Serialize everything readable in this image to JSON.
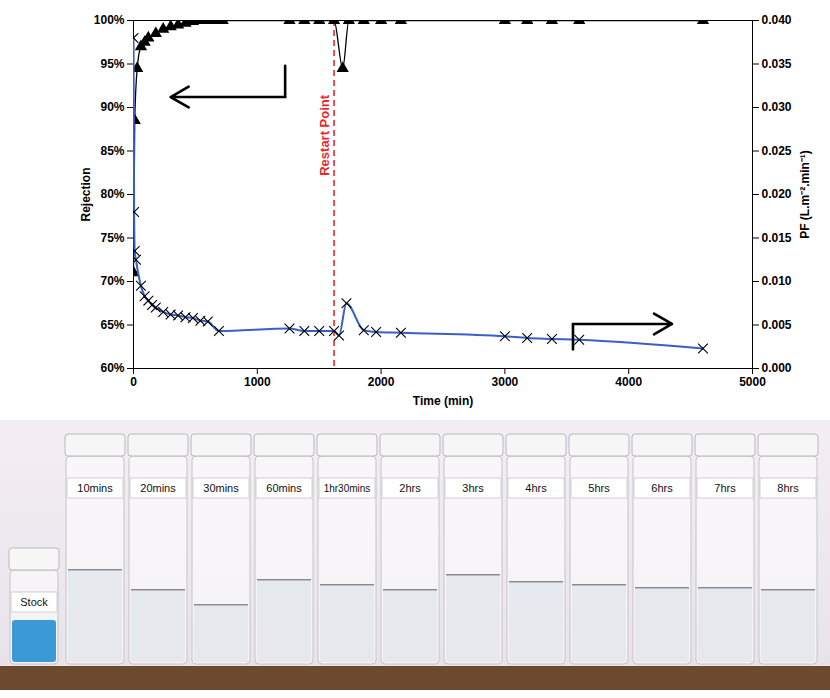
{
  "chart_data": {
    "type": "line",
    "xlabel": "Time (min)",
    "ylabel": "Rejection",
    "y2label": "PF (L.m⁻².min⁻¹)",
    "xlim": [
      0,
      5000
    ],
    "xticks": [
      0,
      1000,
      2000,
      3000,
      4000,
      5000
    ],
    "ylim": [
      60,
      100
    ],
    "yticks": [
      {
        "value": 60,
        "label": "60%"
      },
      {
        "value": 65,
        "label": "65%"
      },
      {
        "value": 70,
        "label": "70%"
      },
      {
        "value": 75,
        "label": "75%"
      },
      {
        "value": 80,
        "label": "80%"
      },
      {
        "value": 85,
        "label": "85%"
      },
      {
        "value": 90,
        "label": "90%"
      },
      {
        "value": 95,
        "label": "95%"
      },
      {
        "value": 100,
        "label": "100%"
      }
    ],
    "y2lim": [
      0,
      0.04
    ],
    "y2ticks": [
      {
        "value": 0,
        "label": "0.000"
      },
      0.005,
      {
        "value": 0.01,
        "label": "0.010"
      },
      0.015,
      {
        "value": 0.02,
        "label": "0.020"
      },
      0.025,
      {
        "value": 0.03,
        "label": "0.030"
      },
      0.035,
      {
        "value": 0.04,
        "label": "0.040"
      }
    ],
    "grid": false,
    "series": [
      {
        "name": "Rejection",
        "color": "#000000",
        "marker": "triangle",
        "line_style": "solid",
        "x": [
          0,
          10,
          30,
          60,
          90,
          120,
          180,
          240,
          300,
          360,
          420,
          480,
          540,
          600,
          660,
          720,
          1260,
          1380,
          1500,
          1620,
          1690,
          1740,
          1860,
          2000,
          2160,
          3000,
          3180,
          3380,
          3600,
          4600
        ],
        "values": [
          71,
          88.5,
          94.5,
          97,
          97.5,
          98,
          98.5,
          99,
          99.3,
          99.5,
          99.7,
          99.9,
          100,
          100,
          100,
          100,
          100,
          100,
          100,
          100,
          94.5,
          100,
          100,
          100,
          100,
          100,
          100,
          100,
          100,
          100
        ]
      },
      {
        "name": "PF",
        "axis": "y2",
        "color": "#3a5fc8",
        "marker": "x",
        "line_style": "solid",
        "x": [
          0,
          5,
          10,
          20,
          60,
          90,
          120,
          150,
          180,
          240,
          300,
          360,
          420,
          480,
          540,
          600,
          690,
          1260,
          1380,
          1500,
          1620,
          1660,
          1720,
          1860,
          1960,
          2160,
          3000,
          3180,
          3380,
          3600,
          4600
        ],
        "values": [
          0.038,
          0.018,
          0.0135,
          0.0125,
          0.0095,
          0.0083,
          0.0078,
          0.0073,
          0.007,
          0.0065,
          0.0062,
          0.0061,
          0.0059,
          0.0058,
          0.0055,
          0.0054,
          0.0043,
          0.0046,
          0.0043,
          0.0043,
          0.0043,
          0.0038,
          0.0075,
          0.0044,
          0.0042,
          0.0041,
          0.0037,
          0.0035,
          0.0034,
          0.0033,
          0.0023
        ]
      }
    ],
    "annotations": [
      {
        "text": "Restart Point",
        "x": 1620,
        "color": "#e8292b",
        "line_style": "dashed"
      }
    ]
  },
  "image": {
    "vial_labels": [
      "Stock",
      "10mins",
      "20mins",
      "30mins",
      "60mins",
      "1hr30mins",
      "2hrs",
      "3hrs",
      "4hrs",
      "5hrs",
      "6hrs",
      "7hrs",
      "8hrs"
    ]
  }
}
